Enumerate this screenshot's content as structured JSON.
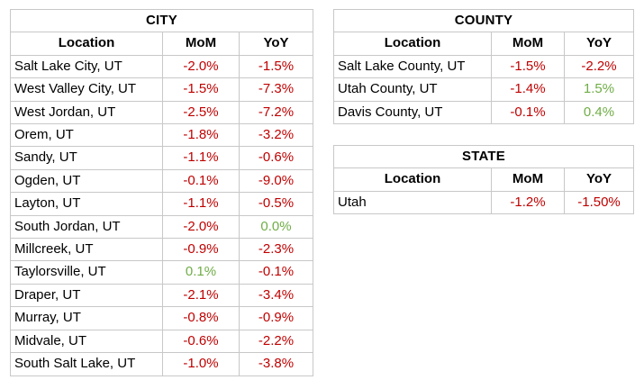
{
  "colors": {
    "negative_text": "#C00000",
    "positive_text": "#70AD47",
    "border": "#C8C8C8",
    "background": "#FFFFFF"
  },
  "tables": {
    "city": {
      "title": "CITY",
      "columns": {
        "location": "Location",
        "mom": "MoM",
        "yoy": "YoY"
      },
      "rows": [
        {
          "location": "Salt Lake City, UT",
          "mom": "-2.0%",
          "yoy": "-1.5%"
        },
        {
          "location": "West Valley City, UT",
          "mom": "-1.5%",
          "yoy": "-7.3%"
        },
        {
          "location": "West Jordan, UT",
          "mom": "-2.5%",
          "yoy": "-7.2%"
        },
        {
          "location": "Orem, UT",
          "mom": "-1.8%",
          "yoy": "-3.2%"
        },
        {
          "location": "Sandy, UT",
          "mom": "-1.1%",
          "yoy": "-0.6%"
        },
        {
          "location": "Ogden, UT",
          "mom": "-0.1%",
          "yoy": "-9.0%"
        },
        {
          "location": "Layton, UT",
          "mom": "-1.1%",
          "yoy": "-0.5%"
        },
        {
          "location": "South Jordan, UT",
          "mom": "-2.0%",
          "yoy": "0.0%"
        },
        {
          "location": "Millcreek, UT",
          "mom": "-0.9%",
          "yoy": "-2.3%"
        },
        {
          "location": "Taylorsville, UT",
          "mom": "0.1%",
          "yoy": "-0.1%"
        },
        {
          "location": "Draper, UT",
          "mom": "-2.1%",
          "yoy": "-3.4%"
        },
        {
          "location": "Murray, UT",
          "mom": "-0.8%",
          "yoy": "-0.9%"
        },
        {
          "location": "Midvale, UT",
          "mom": "-0.6%",
          "yoy": "-2.2%"
        },
        {
          "location": "South Salt Lake, UT",
          "mom": "-1.0%",
          "yoy": "-3.8%"
        }
      ]
    },
    "county": {
      "title": "COUNTY",
      "columns": {
        "location": "Location",
        "mom": "MoM",
        "yoy": "YoY"
      },
      "rows": [
        {
          "location": "Salt Lake County, UT",
          "mom": "-1.5%",
          "yoy": "-2.2%"
        },
        {
          "location": "Utah County, UT",
          "mom": "-1.4%",
          "yoy": "1.5%"
        },
        {
          "location": "Davis County, UT",
          "mom": "-0.1%",
          "yoy": "0.4%"
        }
      ]
    },
    "state": {
      "title": "STATE",
      "columns": {
        "location": "Location",
        "mom": "MoM",
        "yoy": "YoY"
      },
      "rows": [
        {
          "location": "Utah",
          "mom": "-1.2%",
          "yoy": "-1.50%"
        }
      ]
    }
  }
}
